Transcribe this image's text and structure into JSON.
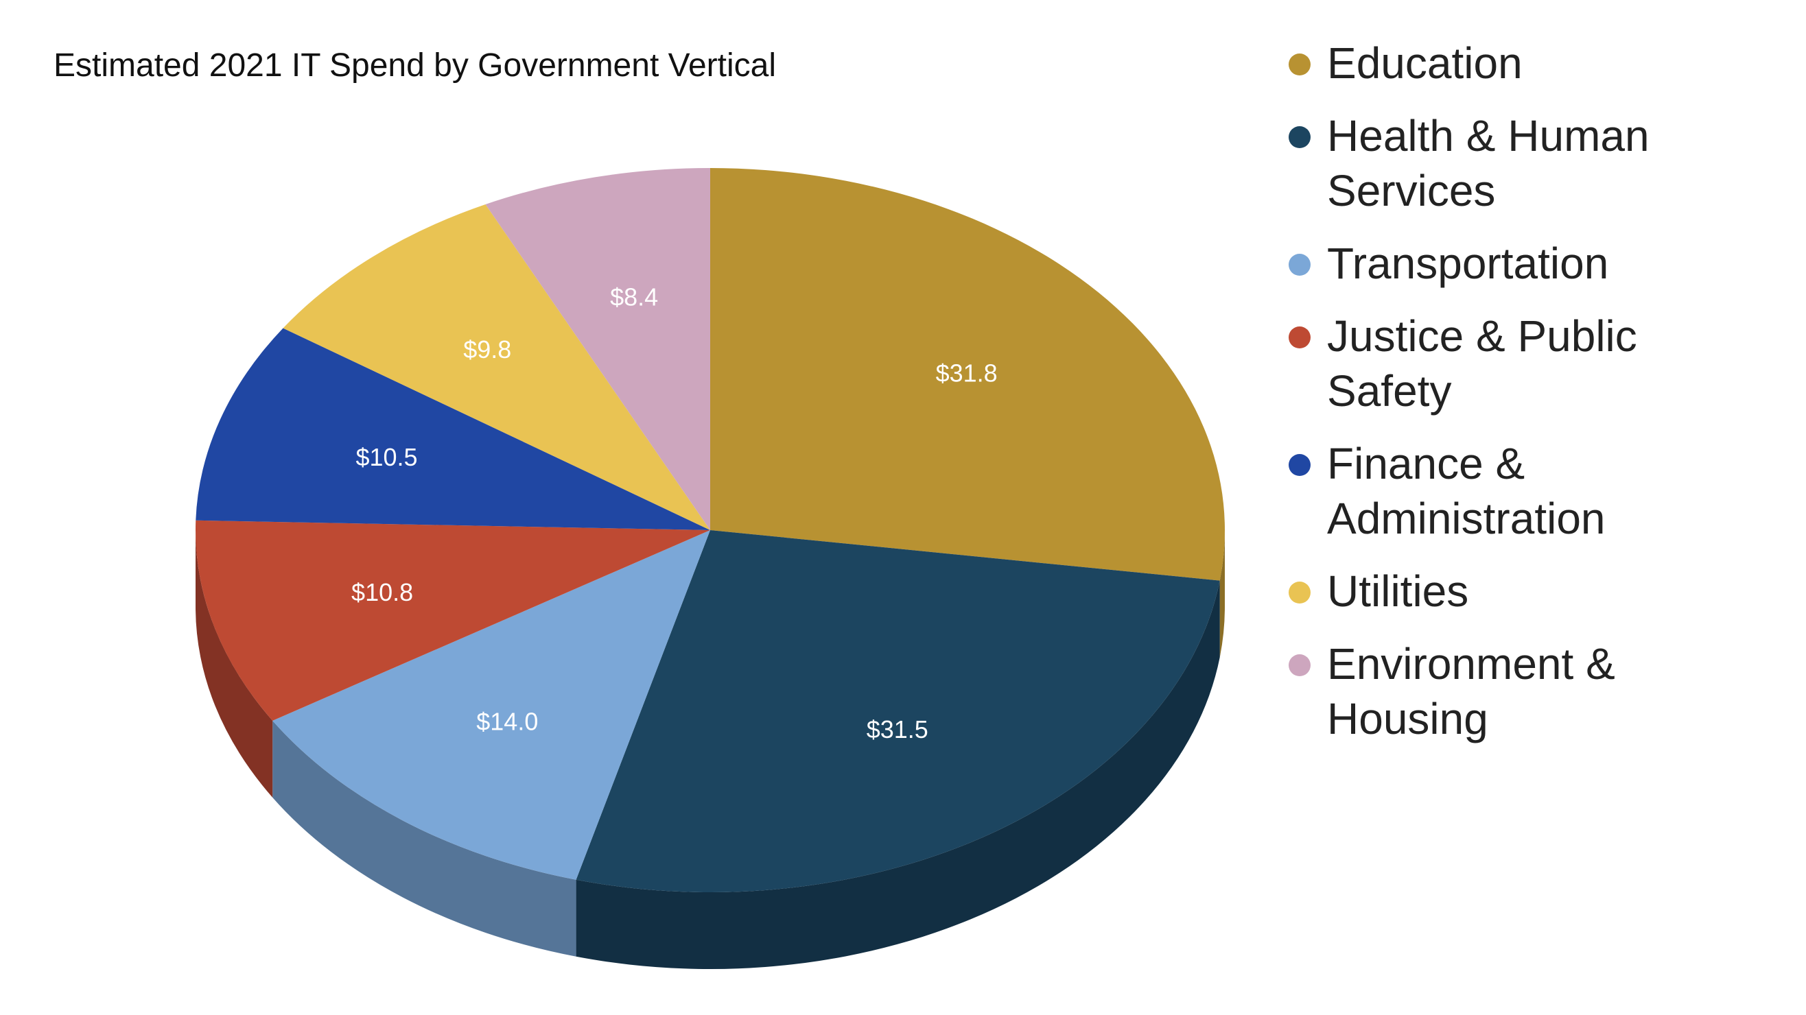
{
  "chart_data": {
    "type": "pie",
    "title": "Estimated 2021 IT Spend by Government Vertical",
    "categories": [
      "Education",
      "Health & Human Services",
      "Transportation",
      "Justice & Public Safety",
      "Finance & Administration",
      "Utilities",
      "Environment & Housing"
    ],
    "values": [
      31.8,
      31.5,
      14.0,
      10.8,
      10.5,
      9.8,
      8.4
    ],
    "value_labels": [
      "$31.8",
      "$31.5",
      "$14.0",
      "$10.8",
      "$10.5",
      "$9.8",
      "$8.4"
    ],
    "colors": [
      "#B89232",
      "#1C4560",
      "#7BA7D7",
      "#BE4A33",
      "#2047A3",
      "#E9C353",
      "#CDA6BE"
    ],
    "side_colors": [
      "#8C6F26",
      "#122F43",
      "#557598",
      "#833224",
      "#163276",
      "#A88A3A",
      "#92788A"
    ],
    "style": "3d",
    "legend": "right"
  }
}
